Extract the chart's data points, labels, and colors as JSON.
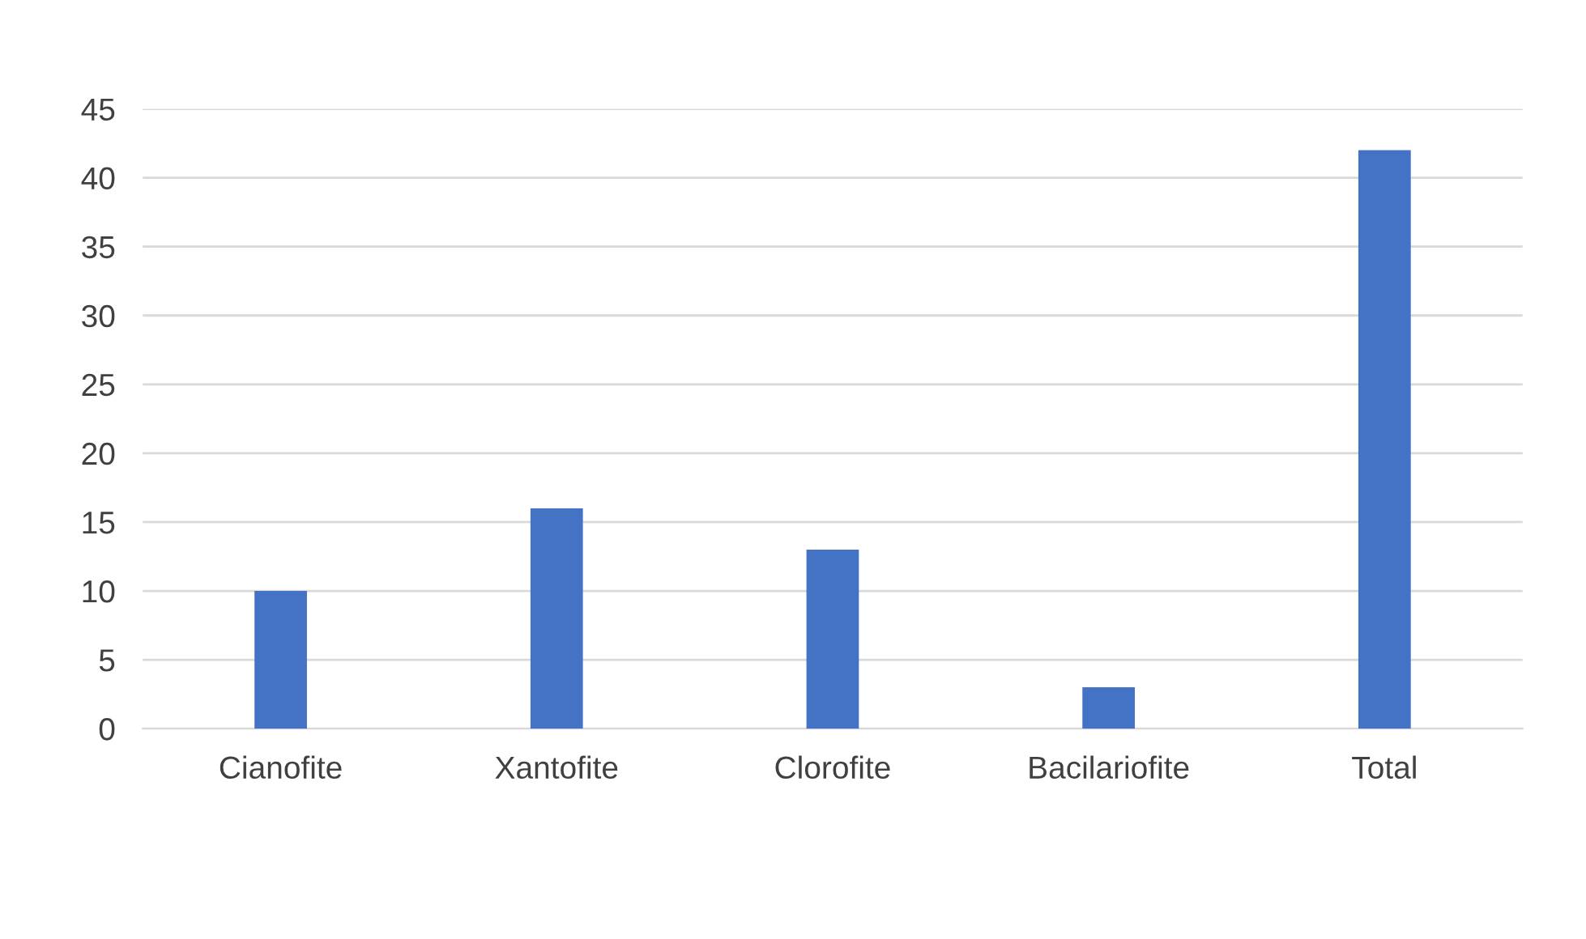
{
  "chart_data": {
    "type": "bar",
    "categories": [
      "Cianofite",
      "Xantofite",
      "Clorofite",
      "Bacilariofite",
      "Total"
    ],
    "values": [
      10,
      16,
      13,
      3,
      42
    ],
    "color": "#4472c4",
    "ylim": [
      0,
      45
    ],
    "yticks": [
      0,
      5,
      10,
      15,
      20,
      25,
      30,
      35,
      40,
      45
    ],
    "grid": "y"
  }
}
